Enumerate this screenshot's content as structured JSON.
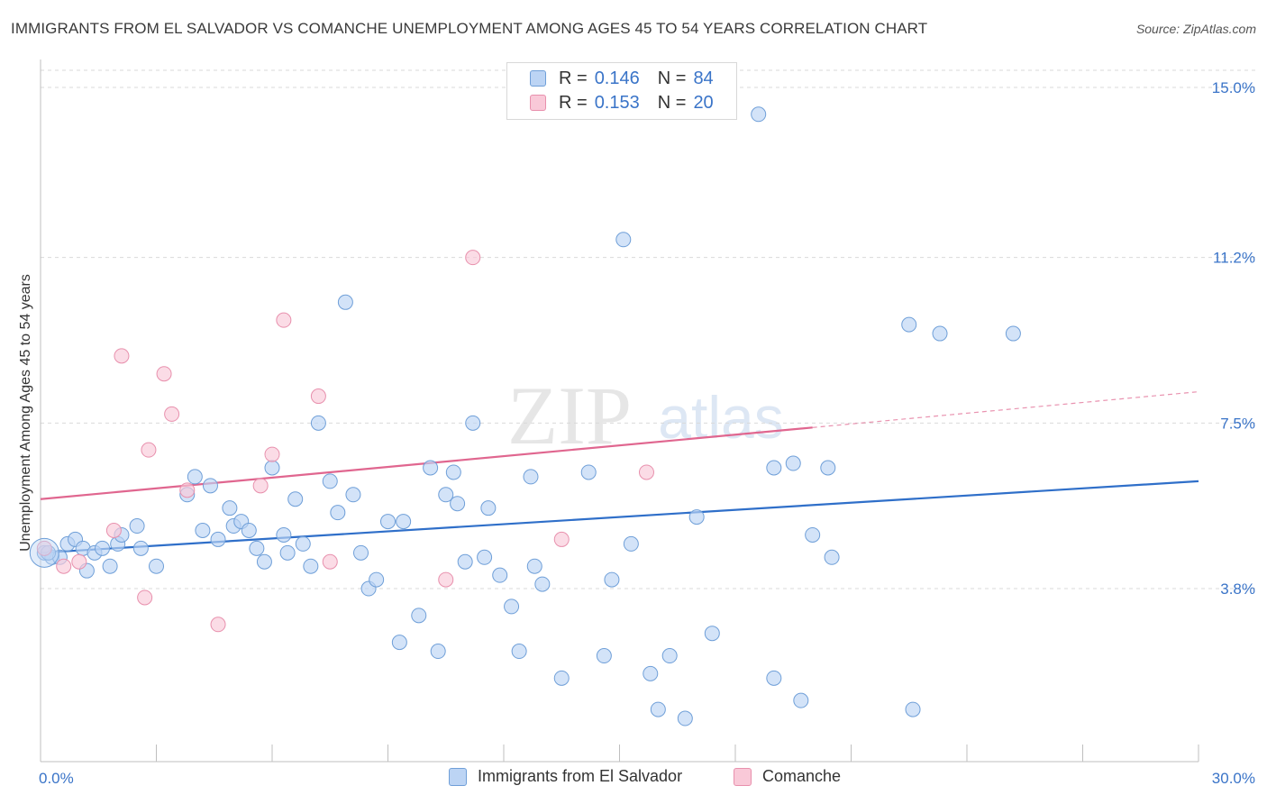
{
  "title": "IMMIGRANTS FROM EL SALVADOR VS COMANCHE UNEMPLOYMENT AMONG AGES 45 TO 54 YEARS CORRELATION CHART",
  "source": "Source: ZipAtlas.com",
  "watermark": {
    "zip": "ZIP",
    "atlas": "atlas"
  },
  "legend": {
    "r_label": "R =",
    "n_label": "N =",
    "series": [
      {
        "name": "Immigrants from El Salvador",
        "r": "0.146",
        "n": "84"
      },
      {
        "name": "Comanche",
        "r": "0.153",
        "n": "20"
      }
    ]
  },
  "colors": {
    "blue_fill": "#bcd4f4",
    "blue_stroke": "#6f9fd8",
    "blue_line": "#2f6fc9",
    "pink_fill": "#f9c9d8",
    "pink_stroke": "#e890ad",
    "pink_line": "#e0668f",
    "tick_label": "#3a74c8",
    "grid": "#d9d9d9"
  },
  "chart_data": {
    "type": "scatter",
    "title": "IMMIGRANTS FROM EL SALVADOR VS COMANCHE UNEMPLOYMENT AMONG AGES 45 TO 54 YEARS CORRELATION CHART",
    "xlabel": "",
    "ylabel": "Unemployment Among Ages 45 to 54 years",
    "xlim": [
      0,
      30
    ],
    "ylim": [
      0,
      15.7
    ],
    "x_tick_labels": [
      {
        "value": 0,
        "label": "0.0%"
      },
      {
        "value": 30,
        "label": "30.0%"
      }
    ],
    "y_tick_labels": [
      {
        "value": 3.8,
        "label": "3.8%"
      },
      {
        "value": 7.5,
        "label": "7.5%"
      },
      {
        "value": 11.2,
        "label": "11.2%"
      },
      {
        "value": 15.0,
        "label": "15.0%"
      }
    ],
    "grid": true,
    "legend_position": "top-center",
    "series": [
      {
        "name": "Immigrants from El Salvador",
        "color": "#bcd4f4",
        "points": [
          [
            0.1,
            4.6
          ],
          [
            0.3,
            4.5
          ],
          [
            0.5,
            4.5
          ],
          [
            0.7,
            4.8
          ],
          [
            0.9,
            4.9
          ],
          [
            1.1,
            4.7
          ],
          [
            1.2,
            4.2
          ],
          [
            1.4,
            4.6
          ],
          [
            1.6,
            4.7
          ],
          [
            1.8,
            4.3
          ],
          [
            2.0,
            4.8
          ],
          [
            2.1,
            5.0
          ],
          [
            2.5,
            5.2
          ],
          [
            2.6,
            4.7
          ],
          [
            3.0,
            4.3
          ],
          [
            3.8,
            5.9
          ],
          [
            4.0,
            6.3
          ],
          [
            4.2,
            5.1
          ],
          [
            4.4,
            6.1
          ],
          [
            4.6,
            4.9
          ],
          [
            4.9,
            5.6
          ],
          [
            5.0,
            5.2
          ],
          [
            5.2,
            5.3
          ],
          [
            5.4,
            5.1
          ],
          [
            5.6,
            4.7
          ],
          [
            5.8,
            4.4
          ],
          [
            6.0,
            6.5
          ],
          [
            6.3,
            5.0
          ],
          [
            6.4,
            4.6
          ],
          [
            6.8,
            4.8
          ],
          [
            7.0,
            4.3
          ],
          [
            7.2,
            7.5
          ],
          [
            7.5,
            6.2
          ],
          [
            7.7,
            5.5
          ],
          [
            7.9,
            10.2
          ],
          [
            8.1,
            5.9
          ],
          [
            8.3,
            4.6
          ],
          [
            8.5,
            3.8
          ],
          [
            8.7,
            4.0
          ],
          [
            9.0,
            5.3
          ],
          [
            9.3,
            2.6
          ],
          [
            9.4,
            5.3
          ],
          [
            9.8,
            3.2
          ],
          [
            10.1,
            6.5
          ],
          [
            10.3,
            2.4
          ],
          [
            10.5,
            5.9
          ],
          [
            10.7,
            6.4
          ],
          [
            10.8,
            5.7
          ],
          [
            11.0,
            4.4
          ],
          [
            11.2,
            7.5
          ],
          [
            11.5,
            4.5
          ],
          [
            11.6,
            5.6
          ],
          [
            11.9,
            4.1
          ],
          [
            12.2,
            3.4
          ],
          [
            12.4,
            2.4
          ],
          [
            12.7,
            6.3
          ],
          [
            12.8,
            4.3
          ],
          [
            13.0,
            3.9
          ],
          [
            13.5,
            1.8
          ],
          [
            14.2,
            6.4
          ],
          [
            14.6,
            2.3
          ],
          [
            14.8,
            4.0
          ],
          [
            15.1,
            11.6
          ],
          [
            15.3,
            4.8
          ],
          [
            16.0,
            1.1
          ],
          [
            16.3,
            2.3
          ],
          [
            16.7,
            0.9
          ],
          [
            17.0,
            5.4
          ],
          [
            17.4,
            2.8
          ],
          [
            18.6,
            14.4
          ],
          [
            19.0,
            1.8
          ],
          [
            19.0,
            6.5
          ],
          [
            19.5,
            6.6
          ],
          [
            19.7,
            1.3
          ],
          [
            20.0,
            5.0
          ],
          [
            20.4,
            6.5
          ],
          [
            20.5,
            4.5
          ],
          [
            22.5,
            9.7
          ],
          [
            22.6,
            1.1
          ],
          [
            23.3,
            9.5
          ],
          [
            25.2,
            9.5
          ],
          [
            0.2,
            4.6
          ],
          [
            15.8,
            1.9
          ],
          [
            6.6,
            5.8
          ]
        ]
      },
      {
        "name": "Comanche",
        "color": "#f9c9d8",
        "points": [
          [
            0.1,
            4.7
          ],
          [
            0.6,
            4.3
          ],
          [
            1.0,
            4.4
          ],
          [
            1.9,
            5.1
          ],
          [
            2.1,
            9.0
          ],
          [
            2.8,
            6.9
          ],
          [
            2.7,
            3.6
          ],
          [
            3.2,
            8.6
          ],
          [
            3.4,
            7.7
          ],
          [
            3.8,
            6.0
          ],
          [
            4.6,
            3.0
          ],
          [
            5.7,
            6.1
          ],
          [
            6.0,
            6.8
          ],
          [
            6.3,
            9.8
          ],
          [
            7.2,
            8.1
          ],
          [
            7.5,
            4.4
          ],
          [
            10.5,
            4.0
          ],
          [
            11.2,
            11.2
          ],
          [
            13.5,
            4.9
          ],
          [
            15.7,
            6.4
          ]
        ]
      }
    ],
    "trend_lines": [
      {
        "series": "Immigrants from El Salvador",
        "x": [
          0,
          30
        ],
        "y": [
          4.6,
          6.2
        ]
      },
      {
        "series": "Comanche",
        "x": [
          0,
          20
        ],
        "y": [
          5.8,
          7.4
        ],
        "dashed_extension": {
          "x": [
            20,
            30
          ],
          "y": [
            7.4,
            8.2
          ]
        }
      }
    ]
  }
}
